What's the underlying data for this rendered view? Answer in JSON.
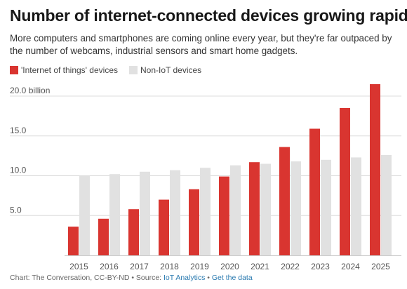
{
  "title": "Number of internet-connected devices growing rapidly",
  "subtitle": "More computers and smartphones are coming online every year, but they're far outpaced by the number of webcams, industrial sensors and smart home gadgets.",
  "colors": {
    "iot": "#d93530",
    "non_iot": "#e1e1e1",
    "grid": "#dcdcdc",
    "axis_text": "#555555"
  },
  "footer": {
    "credit": "Chart: The Conversation, CC-BY-ND • Source: ",
    "source_link": "IoT Analytics",
    "separator": " • ",
    "data_link": "Get the data"
  },
  "chart_data": {
    "type": "bar",
    "categories": [
      "2015",
      "2016",
      "2017",
      "2018",
      "2019",
      "2020",
      "2021",
      "2022",
      "2023",
      "2024",
      "2025"
    ],
    "series": [
      {
        "name": "'Internet of things' devices",
        "values": [
          3.6,
          4.6,
          5.8,
          7.0,
          8.3,
          9.9,
          11.7,
          13.6,
          15.9,
          18.5,
          21.5
        ]
      },
      {
        "name": "Non-IoT devices",
        "values": [
          10.0,
          10.2,
          10.5,
          10.7,
          11.0,
          11.3,
          11.5,
          11.8,
          12.0,
          12.3,
          12.6
        ]
      }
    ],
    "yticks": [
      {
        "value": 5,
        "label": "5.0"
      },
      {
        "value": 10,
        "label": "10.0"
      },
      {
        "value": 15,
        "label": "15.0"
      },
      {
        "value": 20,
        "label": "20.0 billion"
      }
    ],
    "ylim": [
      0,
      22
    ],
    "grid": true,
    "legend_position": "top-left"
  }
}
